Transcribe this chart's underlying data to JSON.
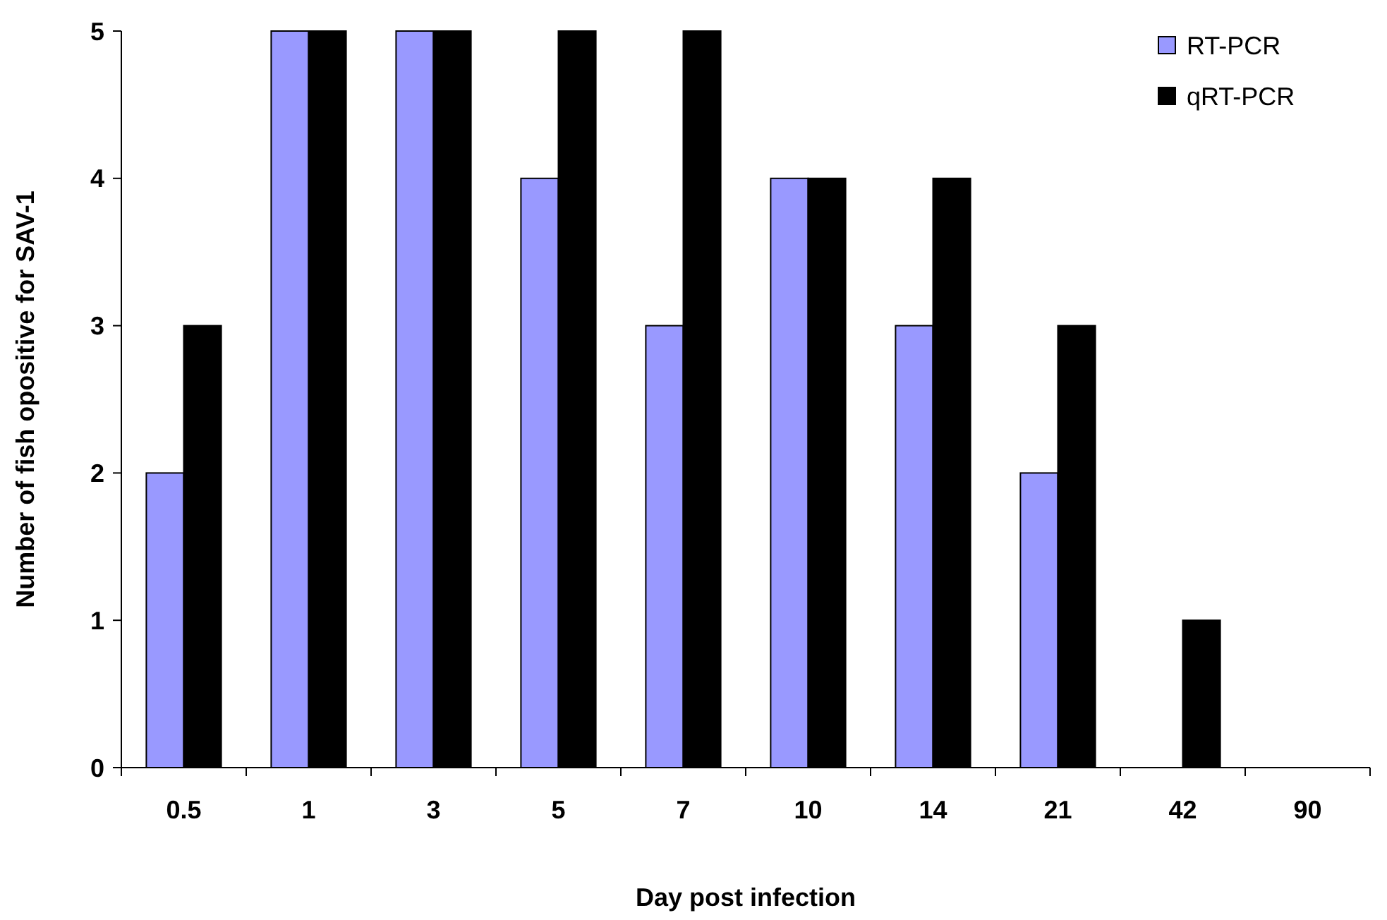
{
  "chart_data": {
    "type": "bar",
    "xlabel": "Day post infection",
    "ylabel": "Number of fish opositive for SAV-1",
    "categories": [
      "0.5",
      "1",
      "3",
      "5",
      "7",
      "10",
      "14",
      "21",
      "42",
      "90"
    ],
    "series": [
      {
        "name": "RT-PCR",
        "color": "#9999ff",
        "values": [
          2,
          5,
          5,
          4,
          3,
          4,
          3,
          2,
          0,
          0
        ]
      },
      {
        "name": "qRT-PCR",
        "color": "#000000",
        "values": [
          3,
          5,
          5,
          5,
          5,
          4,
          4,
          3,
          1,
          0
        ]
      }
    ],
    "ylim": [
      0,
      5
    ],
    "yticks": [
      0,
      1,
      2,
      3,
      4,
      5
    ],
    "grid": false,
    "legend": "top right"
  }
}
